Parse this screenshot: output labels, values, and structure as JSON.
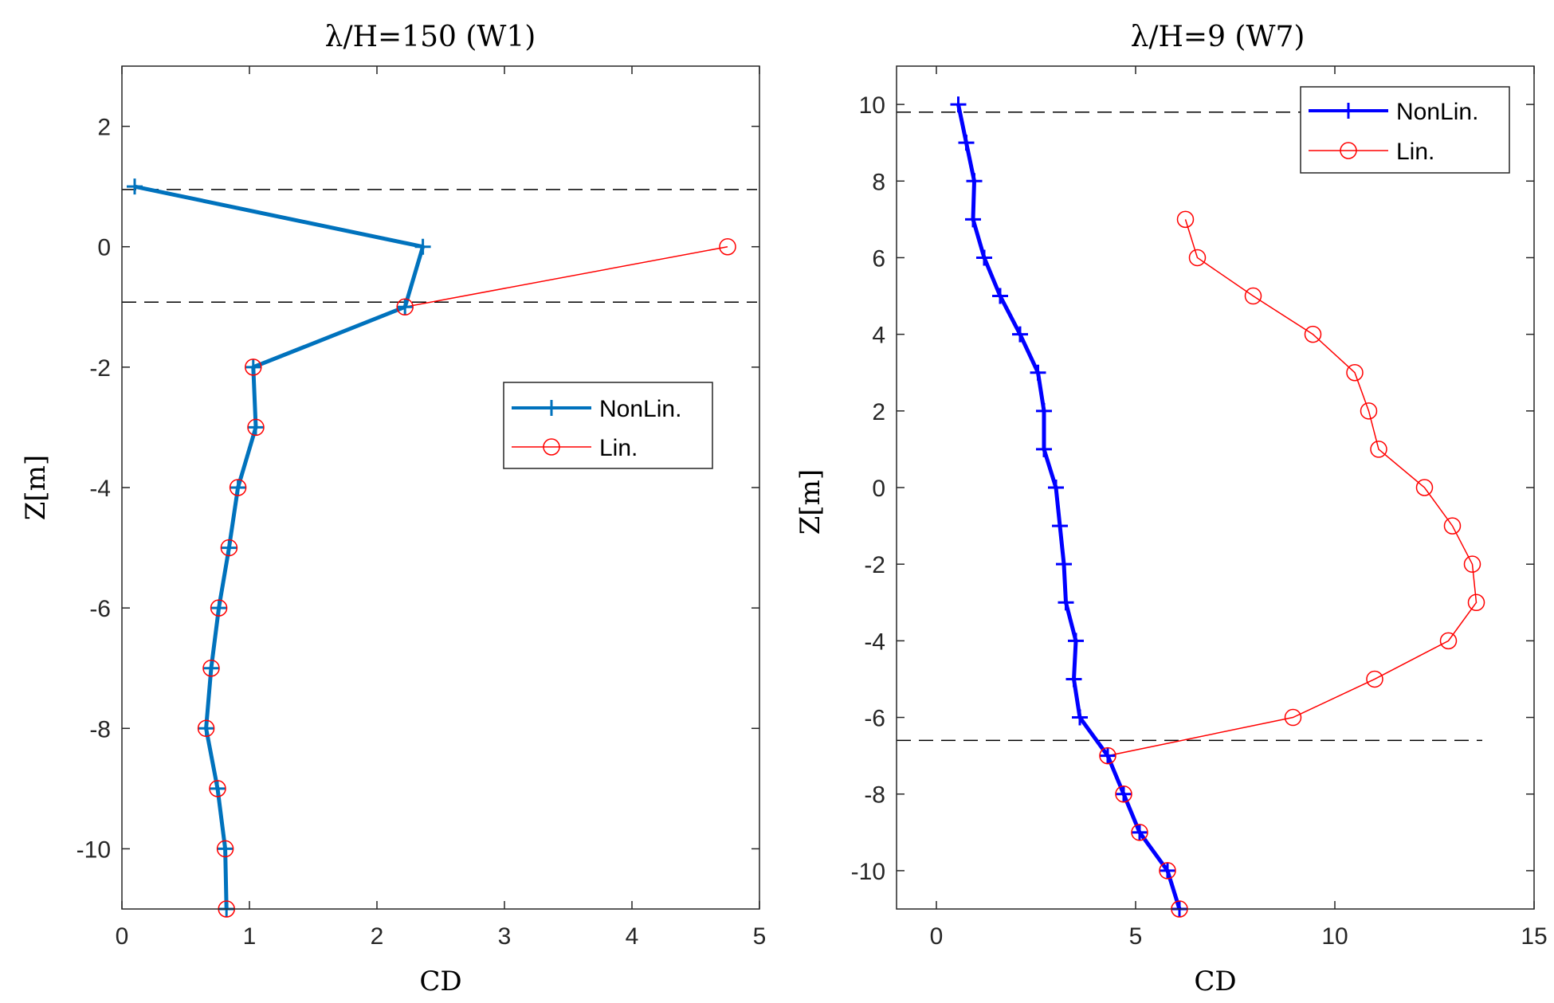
{
  "chart_data": [
    {
      "type": "line",
      "title": "λ/H=150 (W1)",
      "xlabel": "CD",
      "ylabel": "Z[m]",
      "xlim": [
        0,
        5
      ],
      "ylim": [
        -11,
        3
      ],
      "xticks": [
        0,
        1,
        2,
        3,
        4,
        5
      ],
      "yticks": [
        -10,
        -8,
        -6,
        -4,
        -2,
        0,
        2
      ],
      "xtick_labels": [
        "0",
        "1",
        "2",
        "3",
        "4",
        "5"
      ],
      "ytick_labels": [
        "-10",
        "-8",
        "-6",
        "-4",
        "-2",
        "0",
        "2"
      ],
      "legend_position": "right-middle",
      "reference_lines": [
        0.95,
        -0.92
      ],
      "series": [
        {
          "name": "NonLin.",
          "color": "#0072BD",
          "marker": "plus",
          "x": [
            0.1,
            2.36,
            2.22,
            1.03,
            1.05,
            0.91,
            0.84,
            0.76,
            0.7,
            0.66,
            0.75,
            0.81,
            0.82
          ],
          "y": [
            1,
            0,
            -1,
            -2,
            -3,
            -4,
            -5,
            -6,
            -7,
            -8,
            -9,
            -10,
            -11
          ]
        },
        {
          "name": "Lin.",
          "color": "#FF0000",
          "marker": "circle",
          "x": [
            4.75,
            2.22,
            1.03,
            1.05,
            0.91,
            0.84,
            0.76,
            0.7,
            0.66,
            0.75,
            0.81,
            0.82
          ],
          "y": [
            0,
            -1,
            -2,
            -3,
            -4,
            -5,
            -6,
            -7,
            -8,
            -9,
            -10,
            -11
          ]
        }
      ]
    },
    {
      "type": "line",
      "title": "λ/H=9 (W7)",
      "xlabel": "CD",
      "ylabel": "Z[m]",
      "xlim": [
        -1,
        15
      ],
      "ylim": [
        -11,
        11
      ],
      "xticks": [
        0,
        5,
        10,
        15
      ],
      "yticks": [
        -10,
        -8,
        -6,
        -4,
        -2,
        0,
        2,
        4,
        6,
        8,
        10
      ],
      "xtick_labels": [
        "0",
        "5",
        "10",
        "15"
      ],
      "ytick_labels": [
        "-10",
        "-8",
        "-6",
        "-4",
        "-2",
        "0",
        "2",
        "4",
        "6",
        "8",
        "10"
      ],
      "legend_position": "top-right",
      "reference_lines": [
        9.8,
        -6.6
      ],
      "series": [
        {
          "name": "NonLin.",
          "color": "#0000FF",
          "marker": "plus",
          "x": [
            0.55,
            0.75,
            0.95,
            0.92,
            1.2,
            1.6,
            2.1,
            2.55,
            2.7,
            2.7,
            3.0,
            3.1,
            3.2,
            3.25,
            3.5,
            3.45,
            3.6,
            4.3,
            4.7,
            5.1,
            5.8,
            6.1
          ],
          "y": [
            10,
            9,
            8,
            7,
            6,
            5,
            4,
            3,
            2,
            1,
            0,
            -1,
            -2,
            -3,
            -4,
            -5,
            -6,
            -7,
            -8,
            -9,
            -10,
            -11
          ]
        },
        {
          "name": "Lin.",
          "color": "#FF0000",
          "marker": "circle",
          "x": [
            6.25,
            6.55,
            7.95,
            9.45,
            10.5,
            10.85,
            11.1,
            12.25,
            12.95,
            13.45,
            13.55,
            12.85,
            11.0,
            8.95,
            4.3,
            4.7,
            5.1,
            5.8,
            6.1
          ],
          "y": [
            7,
            6,
            5,
            4,
            3,
            2,
            1,
            0,
            -1,
            -2,
            -3,
            -4,
            -5,
            -6,
            -7,
            -8,
            -9,
            -10,
            -11
          ]
        }
      ]
    }
  ]
}
